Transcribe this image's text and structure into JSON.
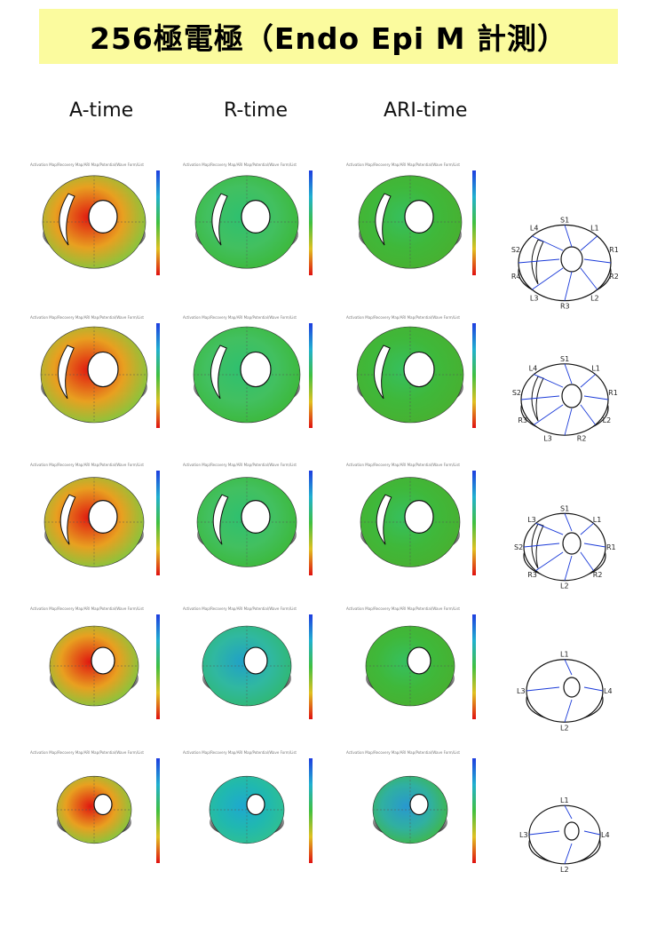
{
  "title": "256極電極（Endo Epi M 計測）",
  "columns": [
    {
      "label": "A-time"
    },
    {
      "label": "R-time"
    },
    {
      "label": "ARI-time"
    }
  ],
  "toolbar_text": "Activation Map/Recovery Map/ARI Map/Potential/Wave Form/List",
  "rows": [
    {
      "diagram_labels": [
        "S1",
        "L1",
        "R1",
        "R2",
        "L2",
        "R3",
        "L3",
        "R4",
        "S2",
        "L4"
      ]
    },
    {
      "diagram_labels": [
        "S1",
        "L1",
        "R1",
        "L2",
        "R2",
        "L3",
        "R3",
        "S2",
        "L4"
      ]
    },
    {
      "diagram_labels": [
        "S1",
        "L1",
        "R1",
        "R2",
        "L2",
        "R3",
        "S2",
        "L3"
      ]
    },
    {
      "diagram_labels": [
        "L1",
        "L4",
        "L2",
        "L3"
      ]
    },
    {
      "diagram_labels": [
        "L1",
        "L4",
        "L2",
        "L3"
      ]
    }
  ],
  "colors": {
    "banner": "#fbfb9e",
    "early": "#e01010",
    "mid": "#3cb838",
    "late": "#2040e0"
  }
}
